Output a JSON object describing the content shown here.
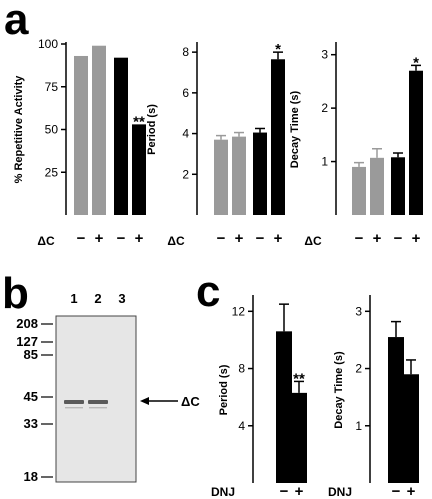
{
  "panels": {
    "a": "a",
    "b": "b",
    "c": "c"
  },
  "colors": {
    "control": "#9a9a9a",
    "experimental": "#000000",
    "blot_bg": "#e6e6e6",
    "band": "#5a5a5a"
  },
  "chart_data": [
    {
      "id": "a1",
      "type": "bar",
      "ylabel": "% Repetitive Activity",
      "ylim": [
        0,
        100
      ],
      "yticks": [
        25,
        50,
        75,
        100
      ],
      "group_label": "ΔC",
      "categories": [
        "−",
        "+",
        "−",
        "+"
      ],
      "colors": [
        "#9a9a9a",
        "#9a9a9a",
        "#000000",
        "#000000"
      ],
      "values": [
        93,
        99,
        92,
        53
      ],
      "errors": [
        0,
        0,
        0,
        0
      ],
      "annotations": [
        "",
        "",
        "",
        "**"
      ]
    },
    {
      "id": "a2",
      "type": "bar",
      "ylabel": "Period (s)",
      "ylim": [
        0,
        8.4
      ],
      "yticks": [
        2,
        4,
        6,
        8
      ],
      "group_label": "ΔC",
      "categories": [
        "−",
        "+",
        "−",
        "+"
      ],
      "colors": [
        "#9a9a9a",
        "#9a9a9a",
        "#000000",
        "#000000"
      ],
      "values": [
        3.7,
        3.85,
        4.05,
        7.65
      ],
      "errors": [
        0.2,
        0.2,
        0.2,
        0.35
      ],
      "annotations": [
        "",
        "",
        "",
        "*"
      ]
    },
    {
      "id": "a3",
      "type": "bar",
      "ylabel": "Decay Time (s)",
      "ylim": [
        0,
        3.2
      ],
      "yticks": [
        1,
        2,
        3
      ],
      "group_label": "ΔC",
      "categories": [
        "−",
        "+",
        "−",
        "+"
      ],
      "colors": [
        "#9a9a9a",
        "#9a9a9a",
        "#000000",
        "#000000"
      ],
      "values": [
        0.9,
        1.07,
        1.08,
        2.7
      ],
      "errors": [
        0.08,
        0.17,
        0.08,
        0.1
      ],
      "annotations": [
        "",
        "",
        "",
        "*"
      ]
    },
    {
      "id": "c1",
      "type": "bar",
      "ylabel": "Period (s)",
      "ylim": [
        0,
        13
      ],
      "yticks": [
        4,
        8,
        12
      ],
      "group_label": "DNJ",
      "categories": [
        "−",
        "+"
      ],
      "colors": [
        "#000000",
        "#000000"
      ],
      "values": [
        10.6,
        6.3
      ],
      "errors": [
        1.9,
        0.8
      ],
      "annotations": [
        "",
        "**"
      ]
    },
    {
      "id": "c2",
      "type": "bar",
      "ylabel": "Decay Time (s)",
      "ylim": [
        0,
        3.25
      ],
      "yticks": [
        1,
        2,
        3
      ],
      "group_label": "DNJ",
      "categories": [
        "−",
        "+"
      ],
      "colors": [
        "#000000",
        "#000000"
      ],
      "values": [
        2.55,
        1.9
      ],
      "errors": [
        0.27,
        0.25
      ],
      "annotations": [
        "",
        ""
      ]
    }
  ],
  "blot": {
    "lanes": [
      "1",
      "2",
      "3"
    ],
    "markers": [
      "208",
      "127",
      "85",
      "45",
      "33",
      "18"
    ],
    "marker_kda": [
      208,
      127,
      85,
      45,
      33,
      18
    ],
    "band_label": "ΔC",
    "band_kda": 42,
    "bands_present": [
      true,
      true,
      false
    ]
  }
}
